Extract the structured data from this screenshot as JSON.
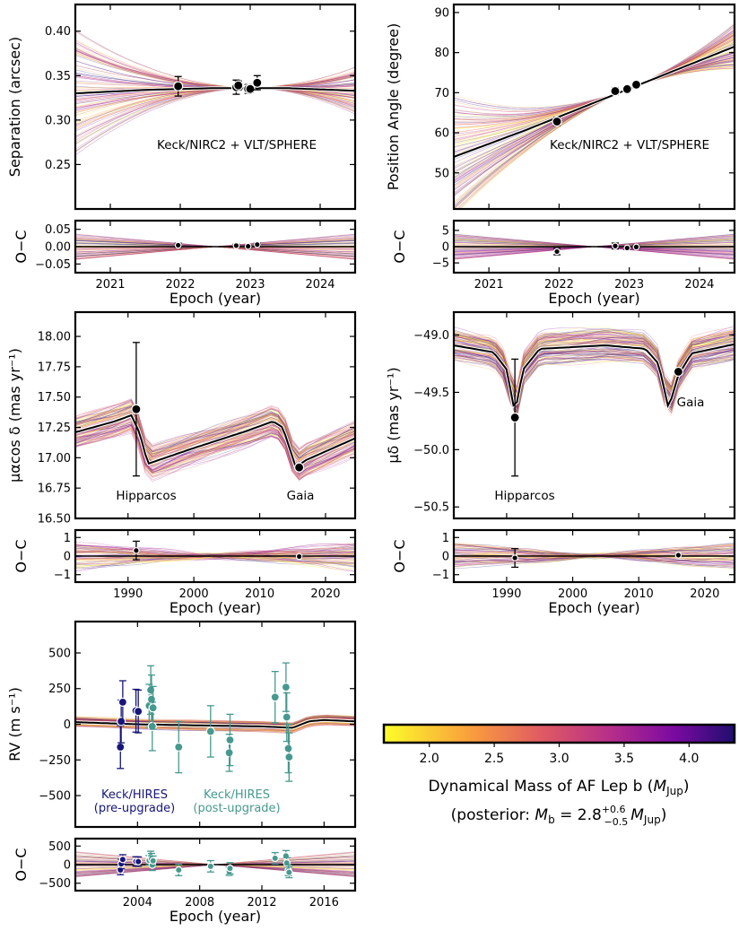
{
  "chart_data": [
    {
      "id": "sep",
      "type": "line",
      "title": "",
      "xlabel": "",
      "ylabel": "Separation (arcsec)",
      "xlim": [
        2020.5,
        2024.5
      ],
      "ylim": [
        0.2,
        0.43
      ],
      "xticks": [
        2021,
        2022,
        2023,
        2024
      ],
      "yticks": [
        0.25,
        0.3,
        0.35,
        0.4
      ],
      "ytick_labels": [
        "0.25",
        "0.30",
        "0.35",
        "0.40"
      ],
      "annotation": "Keck/NIRC2 + VLT/SPHERE",
      "best_fit": {
        "x": [
          2020.5,
          2021.5,
          2022.5,
          2023.0,
          2023.5,
          2024.5
        ],
        "y": [
          0.33,
          0.334,
          0.336,
          0.336,
          0.336,
          0.333
        ]
      },
      "points": [
        {
          "x": 2021.97,
          "y": 0.338,
          "err": 0.011
        },
        {
          "x": 2022.8,
          "y": 0.337,
          "err": 0.008
        },
        {
          "x": 2022.83,
          "y": 0.339,
          "err": 0.005
        },
        {
          "x": 2022.97,
          "y": 0.335,
          "err": 0.005
        },
        {
          "x": 2023.0,
          "y": 0.335,
          "err": 0.004
        },
        {
          "x": 2023.1,
          "y": 0.342,
          "err": 0.008
        }
      ]
    },
    {
      "id": "sep_oc",
      "type": "scatter",
      "ylabel": "O−C",
      "xlabel": "Epoch (year)",
      "xlim": [
        2020.5,
        2024.5
      ],
      "ylim": [
        -0.075,
        0.075
      ],
      "xticks": [
        2021,
        2022,
        2023,
        2024
      ],
      "xtick_labels": [
        "2021",
        "2022",
        "2023",
        "2024"
      ],
      "yticks": [
        -0.05,
        0.0,
        0.05
      ],
      "ytick_labels": [
        "−0.05",
        "0.00",
        "0.05"
      ],
      "points": [
        {
          "x": 2021.97,
          "y": 0.004,
          "err": 0.006
        },
        {
          "x": 2022.8,
          "y": 0.003,
          "err": 0.004
        },
        {
          "x": 2022.97,
          "y": 0.001,
          "err": 0.003
        },
        {
          "x": 2023.1,
          "y": 0.006,
          "err": 0.004
        }
      ]
    },
    {
      "id": "pa",
      "type": "line",
      "ylabel": "Position Angle (degree)",
      "xlim": [
        2020.5,
        2024.5
      ],
      "ylim": [
        41,
        92
      ],
      "xticks": [
        2021,
        2022,
        2023,
        2024
      ],
      "yticks": [
        50,
        60,
        70,
        80,
        90
      ],
      "ytick_labels": [
        "50",
        "60",
        "70",
        "80",
        "90"
      ],
      "annotation": "Keck/NIRC2 + VLT/SPHERE",
      "best_fit": {
        "x": [
          2020.5,
          2021.5,
          2022.5,
          2023.5,
          2024.5
        ],
        "y": [
          54.0,
          60.5,
          67.5,
          74.5,
          81.5
        ]
      },
      "points": [
        {
          "x": 2021.97,
          "y": 62.8,
          "err": 1.0
        },
        {
          "x": 2022.8,
          "y": 70.4,
          "err": 0.9
        },
        {
          "x": 2022.97,
          "y": 70.9,
          "err": 0.5
        },
        {
          "x": 2023.1,
          "y": 72.0,
          "err": 0.6
        }
      ]
    },
    {
      "id": "pa_oc",
      "type": "scatter",
      "ylabel": "O−C",
      "xlabel": "Epoch (year)",
      "xlim": [
        2020.5,
        2024.5
      ],
      "ylim": [
        -8,
        8
      ],
      "xticks": [
        2021,
        2022,
        2023,
        2024
      ],
      "xtick_labels": [
        "2021",
        "2022",
        "2023",
        "2024"
      ],
      "yticks": [
        -5,
        0,
        5
      ],
      "ytick_labels": [
        "−5",
        "0",
        "5"
      ],
      "points": [
        {
          "x": 2021.97,
          "y": -1.5,
          "err": 1.0
        },
        {
          "x": 2022.8,
          "y": 0.2,
          "err": 0.9
        },
        {
          "x": 2022.97,
          "y": -0.4,
          "err": 0.5
        },
        {
          "x": 2023.1,
          "y": -0.1,
          "err": 0.6
        }
      ]
    },
    {
      "id": "pmra",
      "type": "line",
      "ylabel": "μαcos δ (mas yr⁻¹)",
      "xlim": [
        1982,
        2024.5
      ],
      "ylim": [
        16.5,
        18.2
      ],
      "xticks": [
        1990,
        2000,
        2010,
        2020
      ],
      "yticks": [
        16.5,
        16.75,
        17.0,
        17.25,
        17.5,
        17.75,
        18.0
      ],
      "ytick_labels": [
        "16.50",
        "16.75",
        "17.00",
        "17.25",
        "17.50",
        "17.75",
        "18.00"
      ],
      "labels": [
        "Hipparcos",
        "Gaia"
      ],
      "best_fit": {
        "x": [
          1982,
          1988,
          1990.5,
          1991.8,
          1993,
          2000,
          2008,
          2012,
          2013.5,
          2015.5,
          2017,
          2024.5
        ],
        "y": [
          17.21,
          17.3,
          17.35,
          17.2,
          16.95,
          17.08,
          17.22,
          17.3,
          17.25,
          16.92,
          16.98,
          17.16
        ]
      },
      "points": [
        {
          "x": 1991.25,
          "y": 17.4,
          "err": 0.55
        },
        {
          "x": 2016.0,
          "y": 16.92,
          "err": 0.02
        }
      ]
    },
    {
      "id": "pmra_oc",
      "type": "scatter",
      "ylabel": "O−C",
      "xlabel": "Epoch (year)",
      "xlim": [
        1982,
        2024.5
      ],
      "ylim": [
        -1.4,
        1.4
      ],
      "xticks": [
        1990,
        2000,
        2010,
        2020
      ],
      "xtick_labels": [
        "1990",
        "2000",
        "2010",
        "2020"
      ],
      "yticks": [
        -1,
        0,
        1
      ],
      "ytick_labels": [
        "−1",
        "0",
        "1"
      ],
      "points": [
        {
          "x": 1991.25,
          "y": 0.3,
          "err": 0.5
        },
        {
          "x": 2016.0,
          "y": -0.02,
          "err": 0.02
        }
      ]
    },
    {
      "id": "pmdec",
      "type": "line",
      "ylabel": "μδ (mas yr⁻¹)",
      "xlim": [
        1982,
        2024.5
      ],
      "ylim": [
        -50.6,
        -48.8
      ],
      "xticks": [
        1990,
        2000,
        2010,
        2020
      ],
      "yticks": [
        -50.5,
        -50.0,
        -49.5,
        -49.0
      ],
      "ytick_labels": [
        "−50.5",
        "−50.0",
        "−49.5",
        "−49.0"
      ],
      "labels": [
        "Hipparcos",
        "Gaia"
      ],
      "best_fit": {
        "x": [
          1982,
          1988,
          1990,
          1991.25,
          1992.5,
          1995,
          2005,
          2011,
          2013,
          2014.5,
          2016,
          2018,
          2024.5
        ],
        "y": [
          -49.09,
          -49.15,
          -49.3,
          -49.68,
          -49.3,
          -49.12,
          -49.09,
          -49.12,
          -49.25,
          -49.64,
          -49.35,
          -49.16,
          -49.08
        ]
      },
      "points": [
        {
          "x": 1991.25,
          "y": -49.72,
          "err": 0.51
        },
        {
          "x": 2016.0,
          "y": -49.32,
          "err": 0.02
        }
      ]
    },
    {
      "id": "pmdec_oc",
      "type": "scatter",
      "ylabel": "O−C",
      "xlabel": "Epoch (year)",
      "xlim": [
        1982,
        2024.5
      ],
      "ylim": [
        -1.4,
        1.4
      ],
      "xticks": [
        1990,
        2000,
        2010,
        2020
      ],
      "xtick_labels": [
        "1990",
        "2000",
        "2010",
        "2020"
      ],
      "yticks": [
        -1,
        0,
        1
      ],
      "ytick_labels": [
        "−1",
        "0",
        "1"
      ],
      "points": [
        {
          "x": 1991.25,
          "y": -0.1,
          "err": 0.5
        },
        {
          "x": 2016.0,
          "y": 0.05,
          "err": 0.02
        }
      ]
    },
    {
      "id": "rv",
      "type": "scatter",
      "ylabel": "RV (m s⁻¹)",
      "xlim": [
        2000,
        2018
      ],
      "ylim": [
        -720,
        720
      ],
      "xticks": [
        2004,
        2008,
        2012,
        2016
      ],
      "yticks": [
        -500,
        -250,
        0,
        250,
        500
      ],
      "ytick_labels": [
        "−500",
        "−250",
        "0",
        "250",
        "500"
      ],
      "best_fit": {
        "x": [
          2000,
          2004,
          2008,
          2012,
          2014,
          2015,
          2016,
          2018
        ],
        "y": [
          15,
          0,
          -8,
          -15,
          -25,
          20,
          30,
          20
        ]
      },
      "series": [
        {
          "name": "Keck/HIRES (pre-upgrade)",
          "color": "#15157a",
          "points": [
            {
              "x": 2002.9,
              "y": -160,
              "err": 150
            },
            {
              "x": 2002.95,
              "y": 20,
              "err": 150
            },
            {
              "x": 2003.05,
              "y": 155,
              "err": 150
            },
            {
              "x": 2003.9,
              "y": 95,
              "err": 150
            },
            {
              "x": 2004.05,
              "y": 90,
              "err": 150
            }
          ]
        },
        {
          "name": "Keck/HIRES (post-upgrade)",
          "color": "#45998f",
          "points": [
            {
              "x": 2004.75,
              "y": 130,
              "err": 150
            },
            {
              "x": 2004.85,
              "y": 240,
              "err": 170
            },
            {
              "x": 2004.9,
              "y": 175,
              "err": 170
            },
            {
              "x": 2004.95,
              "y": -15,
              "err": 170
            },
            {
              "x": 2005.0,
              "y": 115,
              "err": 150
            },
            {
              "x": 2006.65,
              "y": -160,
              "err": 180
            },
            {
              "x": 2008.7,
              "y": -50,
              "err": 180
            },
            {
              "x": 2009.9,
              "y": -200,
              "err": 130
            },
            {
              "x": 2009.95,
              "y": -110,
              "err": 180
            },
            {
              "x": 2012.85,
              "y": 190,
              "err": 180
            },
            {
              "x": 2013.55,
              "y": 260,
              "err": 170
            },
            {
              "x": 2013.6,
              "y": 50,
              "err": 170
            },
            {
              "x": 2013.7,
              "y": -170,
              "err": 170
            },
            {
              "x": 2013.75,
              "y": -230,
              "err": 170
            }
          ]
        }
      ]
    },
    {
      "id": "rv_oc",
      "type": "scatter",
      "ylabel": "O−C",
      "xlabel": "Epoch (year)",
      "xlim": [
        2000,
        2018
      ],
      "ylim": [
        -700,
        700
      ],
      "xticks": [
        2004,
        2008,
        2012,
        2016
      ],
      "xtick_labels": [
        "2004",
        "2008",
        "2012",
        "2016"
      ],
      "yticks": [
        -500,
        0,
        500
      ],
      "ytick_labels": [
        "−500",
        "0",
        "500"
      ]
    }
  ],
  "colorbar": {
    "label": "Dynamical Mass of AF Lep b (M_Jup)",
    "label_prefix": "Dynamical Mass of AF Lep b (",
    "label_sym": "M",
    "label_sub": "Jup",
    "posterior_prefix": "(posterior: ",
    "posterior_body": "M_b = 2.8 +0.6 −0.5 M_Jup)",
    "posterior_sym": "M",
    "posterior_sub": "b",
    "posterior_value": " = 2.8",
    "posterior_up": "+0.6",
    "posterior_down": "−0.5",
    "posterior_unit_sub": "Jup",
    "posterior_suffix": ")",
    "range": [
      1.65,
      4.35
    ],
    "ticks": [
      2.0,
      2.5,
      3.0,
      3.5,
      4.0
    ],
    "tick_labels": [
      "2.0",
      "2.5",
      "3.0",
      "3.5",
      "4.0"
    ],
    "colors": [
      "#fcfd2a",
      "#f99d3c",
      "#e05a63",
      "#b52d8a",
      "#7a0aa2",
      "#1f0e6e"
    ]
  },
  "legend": {
    "pre_line1": "Keck/HIRES",
    "pre_line2": "(pre-upgrade)",
    "post_line1": "Keck/HIRES",
    "post_line2": "(post-upgrade)"
  }
}
